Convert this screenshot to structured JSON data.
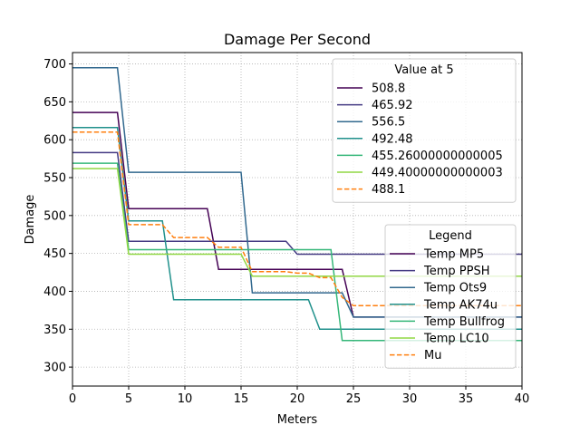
{
  "chart_data": {
    "type": "line",
    "title": "Damage Per Second",
    "xlabel": "Meters",
    "ylabel": "Damage",
    "xlim": [
      0,
      40
    ],
    "ylim": [
      275,
      715
    ],
    "xticks": [
      0,
      5,
      10,
      15,
      20,
      25,
      30,
      35,
      40
    ],
    "yticks": [
      300,
      350,
      400,
      450,
      500,
      550,
      600,
      650,
      700
    ],
    "grid": true,
    "series": [
      {
        "name": "Temp MP5",
        "color": "#440154",
        "dashed": false,
        "points": [
          [
            0,
            636
          ],
          [
            4,
            636
          ],
          [
            5,
            509
          ],
          [
            12,
            509
          ],
          [
            13,
            429
          ],
          [
            24,
            429
          ],
          [
            25,
            366
          ],
          [
            40,
            366
          ]
        ]
      },
      {
        "name": "Temp PPSH",
        "color": "#443a83",
        "dashed": false,
        "points": [
          [
            0,
            583
          ],
          [
            4,
            583
          ],
          [
            5,
            466
          ],
          [
            19,
            466
          ],
          [
            20,
            449
          ],
          [
            40,
            449
          ]
        ]
      },
      {
        "name": "Temp Ots9",
        "color": "#31688e",
        "dashed": false,
        "points": [
          [
            0,
            695
          ],
          [
            4,
            695
          ],
          [
            5,
            557
          ],
          [
            15,
            557
          ],
          [
            16,
            398
          ],
          [
            24,
            398
          ],
          [
            25,
            366
          ],
          [
            40,
            366
          ]
        ]
      },
      {
        "name": "Temp AK74u",
        "color": "#21918c",
        "dashed": false,
        "points": [
          [
            0,
            616
          ],
          [
            4,
            616
          ],
          [
            5,
            493
          ],
          [
            8,
            493
          ],
          [
            9,
            389
          ],
          [
            21,
            389
          ],
          [
            22,
            350
          ],
          [
            40,
            350
          ]
        ]
      },
      {
        "name": "Temp Bullfrog",
        "color": "#35b779",
        "dashed": false,
        "points": [
          [
            0,
            569
          ],
          [
            4,
            569
          ],
          [
            5,
            455
          ],
          [
            23,
            455
          ],
          [
            24,
            335
          ],
          [
            40,
            335
          ]
        ]
      },
      {
        "name": "Temp LC10",
        "color": "#90d743",
        "dashed": false,
        "points": [
          [
            0,
            562
          ],
          [
            4,
            562
          ],
          [
            5,
            449
          ],
          [
            15,
            449
          ],
          [
            16,
            420
          ],
          [
            40,
            420
          ]
        ]
      },
      {
        "name": "Mu",
        "color": "#ff7f0e",
        "dashed": true,
        "points": [
          [
            0,
            610
          ],
          [
            4,
            610
          ],
          [
            5,
            488
          ],
          [
            8,
            488
          ],
          [
            9,
            471
          ],
          [
            12,
            471
          ],
          [
            13,
            458
          ],
          [
            15,
            458
          ],
          [
            16,
            426
          ],
          [
            19,
            426
          ],
          [
            20,
            424
          ],
          [
            21,
            424
          ],
          [
            22,
            418
          ],
          [
            23,
            418
          ],
          [
            24,
            392
          ],
          [
            25,
            381
          ],
          [
            40,
            381
          ]
        ]
      }
    ],
    "legend_value": {
      "title": "Value at 5",
      "placement": "top-right",
      "entries": [
        {
          "label": "508.8",
          "color": "#440154",
          "dashed": false
        },
        {
          "label": "465.92",
          "color": "#443a83",
          "dashed": false
        },
        {
          "label": "556.5",
          "color": "#31688e",
          "dashed": false
        },
        {
          "label": "492.48",
          "color": "#21918c",
          "dashed": false
        },
        {
          "label": "455.26000000000005",
          "color": "#35b779",
          "dashed": false
        },
        {
          "label": "449.40000000000003",
          "color": "#90d743",
          "dashed": false
        },
        {
          "label": "488.1",
          "color": "#ff7f0e",
          "dashed": true
        }
      ]
    },
    "legend_series": {
      "title": "Legend",
      "placement": "bottom-right",
      "entries": [
        {
          "label": "Temp MP5",
          "color": "#440154",
          "dashed": false
        },
        {
          "label": "Temp PPSH",
          "color": "#443a83",
          "dashed": false
        },
        {
          "label": "Temp Ots9",
          "color": "#31688e",
          "dashed": false
        },
        {
          "label": "Temp AK74u",
          "color": "#21918c",
          "dashed": false
        },
        {
          "label": "Temp Bullfrog",
          "color": "#35b779",
          "dashed": false
        },
        {
          "label": "Temp LC10",
          "color": "#90d743",
          "dashed": false
        },
        {
          "label": "Mu",
          "color": "#ff7f0e",
          "dashed": true
        }
      ]
    }
  }
}
